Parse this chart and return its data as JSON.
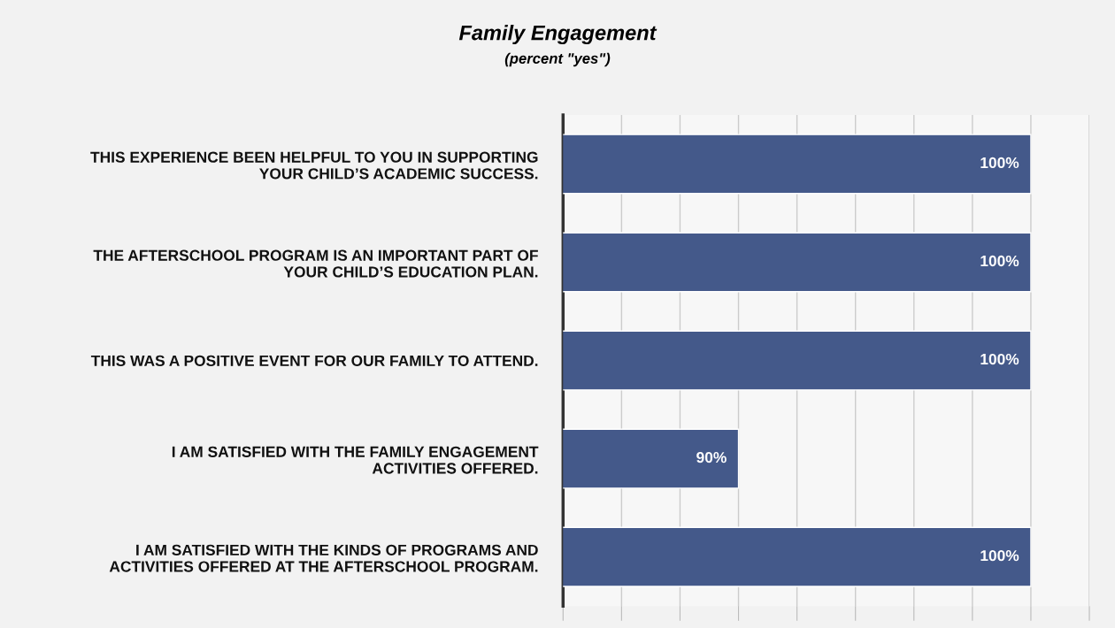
{
  "chart_data": {
    "type": "bar",
    "orientation": "horizontal",
    "title": "Family Engagement",
    "subtitle": "(percent \"yes\")",
    "categories": [
      "THIS EXPERIENCE BEEN HELPFUL TO YOU IN SUPPORTING\nYOUR CHILD’S ACADEMIC SUCCESS.",
      "THE AFTERSCHOOL PROGRAM IS AN IMPORTANT PART OF\nYOUR CHILD’S EDUCATION PLAN.",
      "THIS WAS A POSITIVE EVENT FOR OUR FAMILY TO ATTEND.",
      "I AM SATISFIED WITH THE FAMILY ENGAGEMENT\nACTIVITIES OFFERED.",
      "I AM SATISFIED WITH THE KINDS OF PROGRAMS AND\nACTIVITIES OFFERED AT THE AFTERSCHOOL PROGRAM."
    ],
    "values": [
      100,
      100,
      100,
      90,
      100
    ],
    "value_labels": [
      "100%",
      "100%",
      "100%",
      "90%",
      "100%"
    ],
    "color": "#44598a",
    "xlim": [
      84,
      102
    ],
    "xticks": [
      {
        "value": 84,
        "label": null
      },
      {
        "value": 86,
        "label": null
      },
      {
        "value": 88,
        "label": null
      },
      {
        "value": 90,
        "label": null
      },
      {
        "value": 92,
        "label": null
      },
      {
        "value": 94,
        "label": null
      },
      {
        "value": 96,
        "label": null
      },
      {
        "value": 98,
        "label": null
      },
      {
        "value": 100,
        "label": null
      },
      {
        "value": 102,
        "label": null
      }
    ],
    "tick_labels": "y",
    "grid": "x",
    "legend": false
  }
}
